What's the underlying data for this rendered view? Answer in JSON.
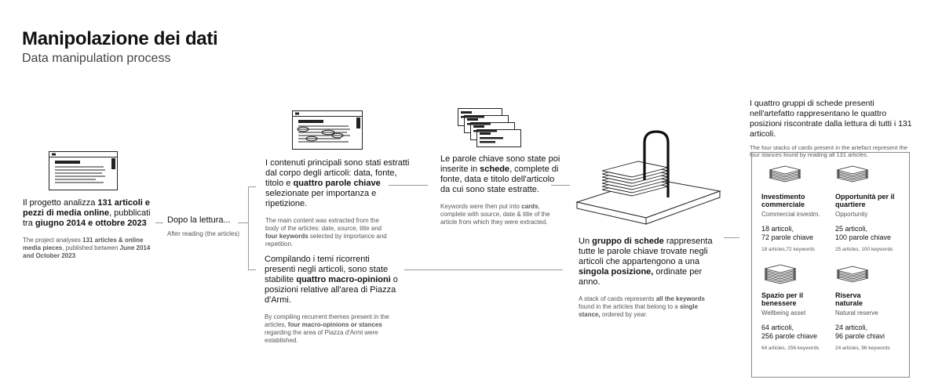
{
  "header": {
    "title": "Manipolazione dei dati",
    "subtitle": "Data manipulation process"
  },
  "step1": {
    "it_1": "Il progetto analizza ",
    "it_b1": "131 articoli e pezzi di media online",
    "it_2": ", pubblicati tra ",
    "it_b2": "giugno 2014 e ottobre 2023",
    "en_1": "The project analyses ",
    "en_b1": "131 articles & online media pieces",
    "en_2": ", published between ",
    "en_b2": "June 2014 and October 2023"
  },
  "step2": {
    "it": "Dopo la lettura...",
    "en": "After reading (the articles)"
  },
  "step3": {
    "it_1": "I contenuti principali sono stati estratti dal corpo degli articoli: data, fonte, titolo e ",
    "it_b1": "quattro parole chiave",
    "it_2": " selezionate per importanza e ripetizione.",
    "en_1": "The main content was extracted from the body of the articles: date, source, title and ",
    "en_b1": "four keywords",
    "en_2": " selected by importance and repetition."
  },
  "step4": {
    "it_1": "Le parole chiave sono state poi inserite in ",
    "it_b1": "schede",
    "it_2": ", complete di fonte, data e titolo dell'articolo da cui sono state estratte.",
    "en_1": "Keywords were then put into ",
    "en_b1": "cards",
    "en_2": ", complete with source, date & title of the article from which they were extracted."
  },
  "step5": {
    "it_1": "Compilando i temi ricorrenti presenti negli articoli, sono state stabilite ",
    "it_b1": "quattro macro-opinioni",
    "it_2": " o posizioni relative all'area di Piazza d'Armi.",
    "en_1": "By compiling recurrent themes present in the articles, ",
    "en_b1": "four macro-opinions or stances",
    "en_2": " regarding the area of Piazza d'Armi were established."
  },
  "step6": {
    "it_1": "Un ",
    "it_b1": "gruppo di schede",
    "it_2": " rappresenta tutte le parole chiave trovate negli articoli che appartengono a una ",
    "it_b2": "singola posizione,",
    "it_3": " ordinate per anno.",
    "en_1": "A stack of cards represents ",
    "en_b1": "all the keywords",
    "en_2": " found in the articles that belong to a ",
    "en_b2": "single stance,",
    "en_3": " ordered by year."
  },
  "step7": {
    "it": "I quattro gruppi di schede presenti nell'artefatto rappresentano le quattro posizioni riscontrate dalla lettura di tutti i 131 articoli.",
    "en": "The four stacks of cards present in the artefact represent the four stances found by reading all 131 articles."
  },
  "stacks": [
    {
      "title": "Investimento commerciale",
      "subtitle": "Commercial investm.",
      "it_a": "18 articoli,",
      "it_b": "72 parole chiave",
      "en": "18 articles,72 keywords"
    },
    {
      "title": "Opportunità per il quartiere",
      "subtitle": "Opportunity",
      "it_a": "25 articoli,",
      "it_b": "100 parole chiave",
      "en": "25 articles, 100 keywords"
    },
    {
      "title": "Spazio per il benessere",
      "subtitle": "Wellbeing asset",
      "it_a": "64 articoli,",
      "it_b": "256 parole chiave",
      "en": "64 articles, 256 keywords"
    },
    {
      "title": "Riserva naturale",
      "subtitle": "Natural reserve",
      "it_a": "24 articoli,",
      "it_b": "96 parole chiavi",
      "en": "24 articles, 96 keywords"
    }
  ],
  "colors": {
    "ink": "#111111",
    "muted": "#555555",
    "line": "#999999"
  }
}
